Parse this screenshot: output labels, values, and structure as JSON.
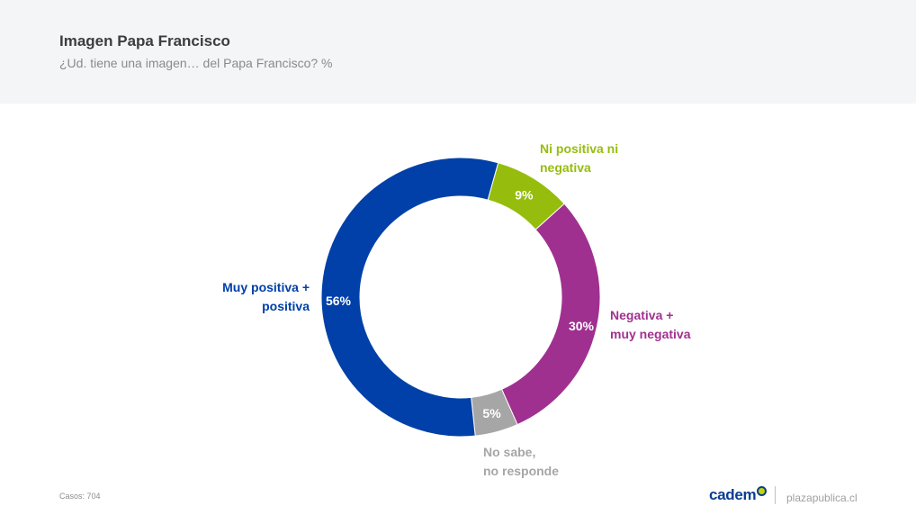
{
  "header": {
    "title": "Imagen Papa Francisco",
    "subtitle": "¿Ud. tiene una imagen… del Papa Francisco? %"
  },
  "chart_data": {
    "type": "pie",
    "variant": "donut",
    "title": "Imagen Papa Francisco",
    "subtitle": "¿Ud. tiene una imagen… del Papa Francisco? %",
    "unit": "%",
    "slices": [
      {
        "label_lines": [
          "Ni positiva ni",
          "negativa"
        ],
        "value": 9,
        "value_label": "9%",
        "color": "#96bd0d"
      },
      {
        "label_lines": [
          "Negativa +",
          "muy negativa"
        ],
        "value": 30,
        "value_label": "30%",
        "color": "#a0308f"
      },
      {
        "label_lines": [
          "No sabe,",
          "no responde"
        ],
        "value": 5,
        "value_label": "5%",
        "color": "#a6a6a6"
      },
      {
        "label_lines": [
          "Muy positiva +",
          "positiva"
        ],
        "value": 56,
        "value_label": "56%",
        "color": "#0040a8"
      }
    ]
  },
  "footer": {
    "casos": "Casos: 704",
    "brand": "cadem",
    "site": "plazapublica.cl"
  }
}
